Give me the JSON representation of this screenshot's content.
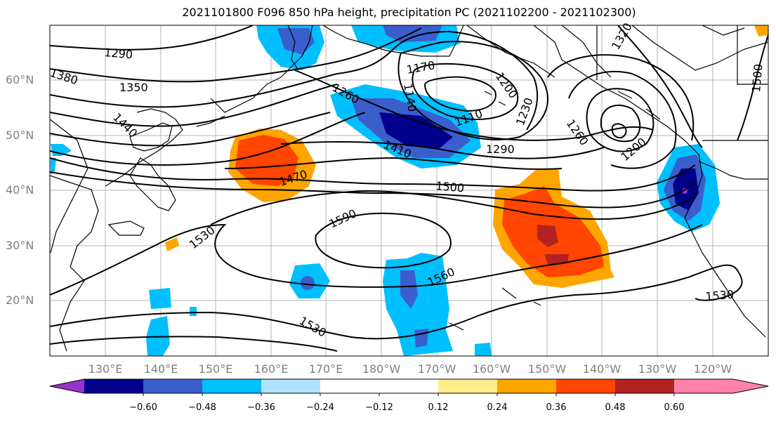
{
  "title": "2021101800 F096 850 hPa height, precipitation PC (2021102200 - 2021102300)",
  "lat_labels": [
    "60°N",
    "50°N",
    "40°N",
    "30°N",
    "20°N"
  ],
  "lon_labels": [
    "130°E",
    "140°E",
    "150°E",
    "160°E",
    "170°E",
    "180°W",
    "170°W",
    "160°W",
    "150°W",
    "140°W",
    "130°W",
    "120°W"
  ],
  "contour_labels": [
    "1290",
    "1380",
    "1350",
    "1440",
    "1260",
    "1170",
    "1140",
    "1200",
    "1230",
    "1110",
    "1410",
    "1290",
    "1260",
    "1200",
    "1320",
    "1500",
    "1470",
    "1500",
    "1590",
    "1530",
    "1560",
    "1530",
    "1530"
  ],
  "colorbar": {
    "ticks": [
      "−0.60",
      "−0.48",
      "−0.36",
      "−0.24",
      "−0.12",
      "0.12",
      "0.24",
      "0.36",
      "0.48",
      "0.60"
    ],
    "colors": [
      "#9932cc",
      "#00008b",
      "#3a5fcd",
      "#00bfff",
      "#b0e2ff",
      "#ffffff",
      "#ffec8b",
      "#ffa500",
      "#ff4500",
      "#b22222",
      "#ff82ab"
    ]
  }
}
